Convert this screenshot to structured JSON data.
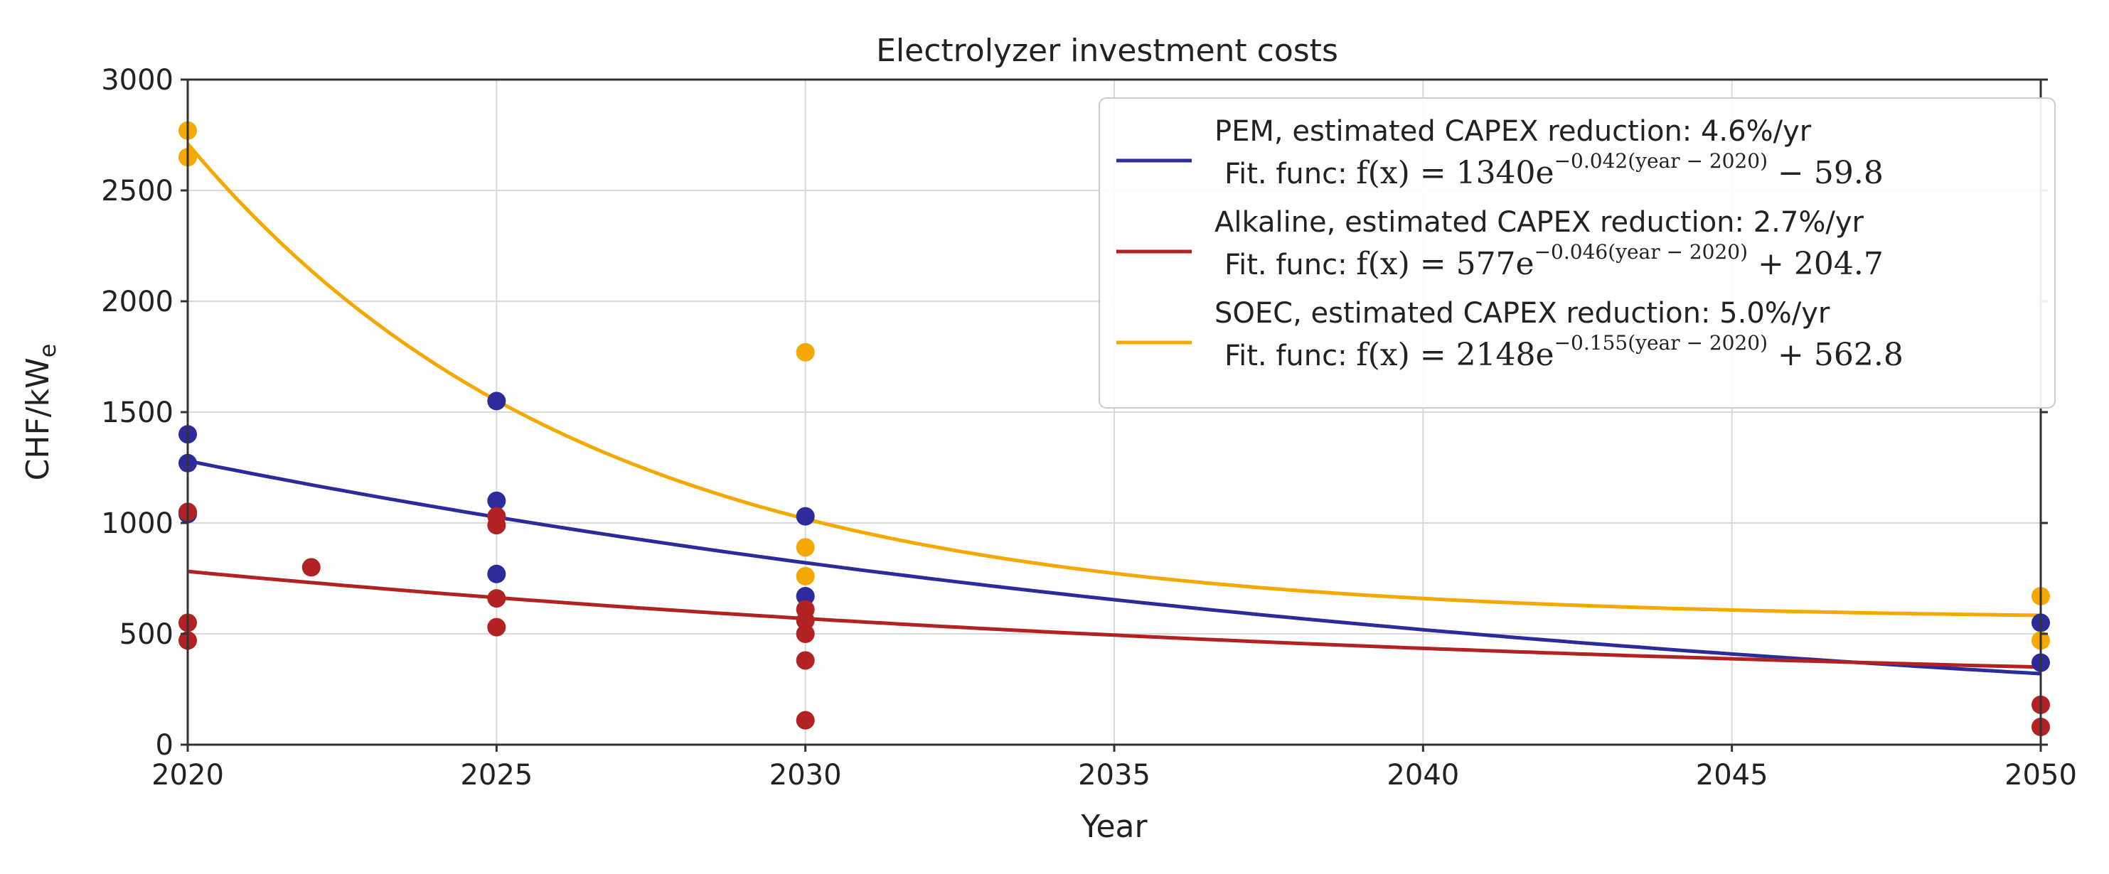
{
  "chart_data": {
    "type": "scatter",
    "title": "Electrolyzer investment costs",
    "xlabel": "Year",
    "ylabel": "CHF/kW_e",
    "xlim": [
      2020,
      2050
    ],
    "ylim": [
      0,
      3000
    ],
    "x_ticks": [
      2020,
      2025,
      2030,
      2035,
      2040,
      2045,
      2050
    ],
    "y_ticks": [
      0,
      500,
      1000,
      1500,
      2000,
      2500,
      3000
    ],
    "grid": true,
    "legend_position": "top-right",
    "series": [
      {
        "name": "PEM, estimated CAPEX reduction: 4.6%/yr",
        "fit_text": "Fit. func: f(x) = 1340e^(−0.042(year − 2020)) − 59.8",
        "fit_label": "Fit. func:",
        "fit_main": "f(x) = 1340e",
        "fit_exp": "−0.042(year − 2020)",
        "fit_tail": " − 59.8",
        "fit": {
          "a": 1340,
          "b": 0.042,
          "c": -59.8
        },
        "color": "#2b2b9c",
        "points": [
          [
            2020,
            1400
          ],
          [
            2020,
            1270
          ],
          [
            2020,
            1040
          ],
          [
            2025,
            1550
          ],
          [
            2025,
            1100
          ],
          [
            2025,
            770
          ],
          [
            2030,
            1030
          ],
          [
            2030,
            670
          ],
          [
            2050,
            550
          ],
          [
            2050,
            370
          ]
        ]
      },
      {
        "name": "Alkaline, estimated CAPEX reduction: 2.7%/yr",
        "fit_text": "Fit. func: f(x) = 577e^(−0.046(year − 2020)) + 204.7",
        "fit_label": "Fit. func:",
        "fit_main": "f(x) = 577e",
        "fit_exp": "−0.046(year − 2020)",
        "fit_tail": " + 204.7",
        "fit": {
          "a": 577,
          "b": 0.046,
          "c": 204.7
        },
        "color": "#b22222",
        "points": [
          [
            2020,
            1050
          ],
          [
            2020,
            550
          ],
          [
            2020,
            470
          ],
          [
            2022,
            800
          ],
          [
            2025,
            1030
          ],
          [
            2025,
            990
          ],
          [
            2025,
            660
          ],
          [
            2025,
            530
          ],
          [
            2030,
            610
          ],
          [
            2030,
            560
          ],
          [
            2030,
            500
          ],
          [
            2030,
            380
          ],
          [
            2030,
            110
          ],
          [
            2050,
            180
          ],
          [
            2050,
            80
          ]
        ]
      },
      {
        "name": "SOEC, estimated CAPEX reduction: 5.0%/yr",
        "fit_text": "Fit. func: f(x) = 2148e^(−0.155(year − 2020)) + 562.8",
        "fit_label": "Fit. func:",
        "fit_main": "f(x) = 2148e",
        "fit_exp": "−0.155(year − 2020)",
        "fit_tail": " + 562.8",
        "fit": {
          "a": 2148,
          "b": 0.155,
          "c": 562.8
        },
        "color": "#f5a800",
        "points": [
          [
            2020,
            2770
          ],
          [
            2020,
            2650
          ],
          [
            2030,
            1770
          ],
          [
            2030,
            890
          ],
          [
            2030,
            760
          ],
          [
            2050,
            670
          ],
          [
            2050,
            470
          ]
        ]
      }
    ]
  }
}
